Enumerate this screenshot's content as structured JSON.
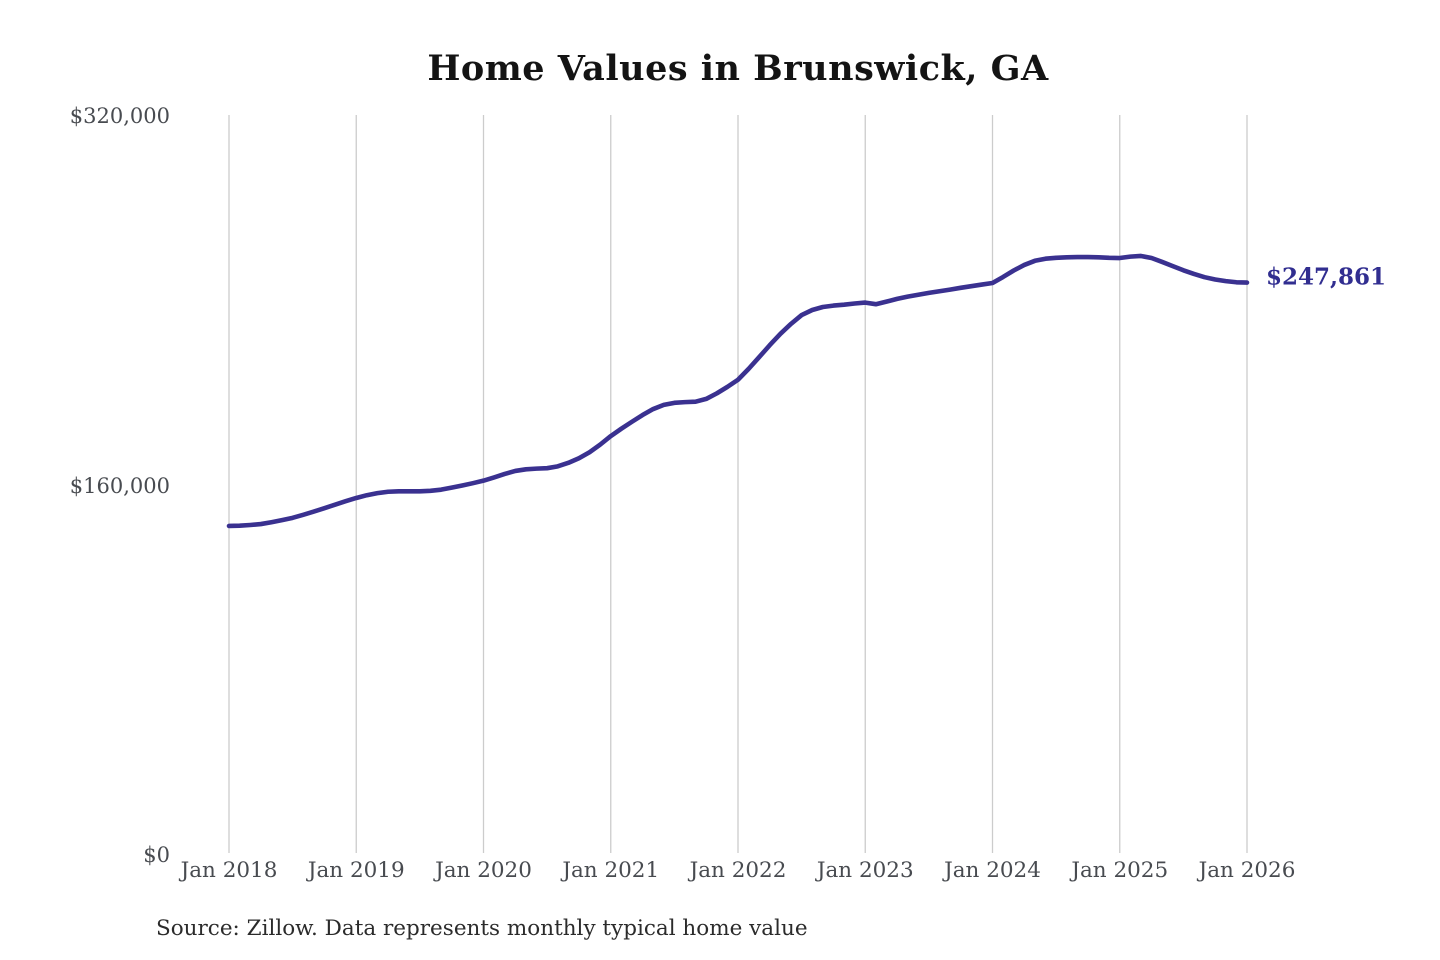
{
  "chart_data": {
    "type": "line",
    "title": "Home Values in Brunswick, GA",
    "source_note": "Source: Zillow. Data represents monthly typical home value",
    "end_label": "$247,861",
    "end_value": 247861,
    "xlabel": "",
    "ylabel": "",
    "ylim": [
      0,
      320000
    ],
    "grid": "vertical-only",
    "legend": "none",
    "colors": {
      "line": "#3a3190",
      "end_label": "#312e90",
      "gridline": "#cccccc",
      "tick_text": "#484b50",
      "title_text": "#141414",
      "background": "#ffffff"
    },
    "x_tick_labels": [
      "Jan 2018",
      "Jan 2019",
      "Jan 2020",
      "Jan 2021",
      "Jan 2022",
      "Jan 2023",
      "Jan 2024",
      "Jan 2025",
      "Jan 2026"
    ],
    "y_ticks": [
      {
        "value": 0,
        "label": "$0"
      },
      {
        "value": 160000,
        "label": "$160,000"
      },
      {
        "value": 320000,
        "label": "$320,000"
      }
    ],
    "x_start": "Jan 2018",
    "x_end": "Jan 2026",
    "x_interval": "monthly",
    "series": [
      {
        "name": "Monthly typical home value",
        "values": [
          142500,
          142600,
          142900,
          143300,
          144100,
          145000,
          146000,
          147300,
          148700,
          150200,
          151700,
          153200,
          154600,
          155800,
          156700,
          157300,
          157500,
          157500,
          157500,
          157700,
          158200,
          159100,
          160000,
          161000,
          162100,
          163500,
          165000,
          166300,
          167000,
          167300,
          167500,
          168300,
          169800,
          171800,
          174400,
          177700,
          181400,
          184600,
          187600,
          190500,
          193100,
          194900,
          195800,
          196100,
          196300,
          197500,
          199900,
          202700,
          205800,
          210500,
          215600,
          220800,
          225700,
          230000,
          233800,
          236000,
          237300,
          237900,
          238300,
          238800,
          239200,
          238500,
          239600,
          240800,
          241800,
          242600,
          243400,
          244100,
          244800,
          245600,
          246300,
          247000,
          247700,
          250300,
          253100,
          255500,
          257300,
          258200,
          258600,
          258800,
          258900,
          258900,
          258800,
          258600,
          258500,
          259100,
          259400,
          258500,
          256800,
          255000,
          253200,
          251600,
          250200,
          249200,
          248500,
          248000,
          247861
        ]
      }
    ]
  }
}
